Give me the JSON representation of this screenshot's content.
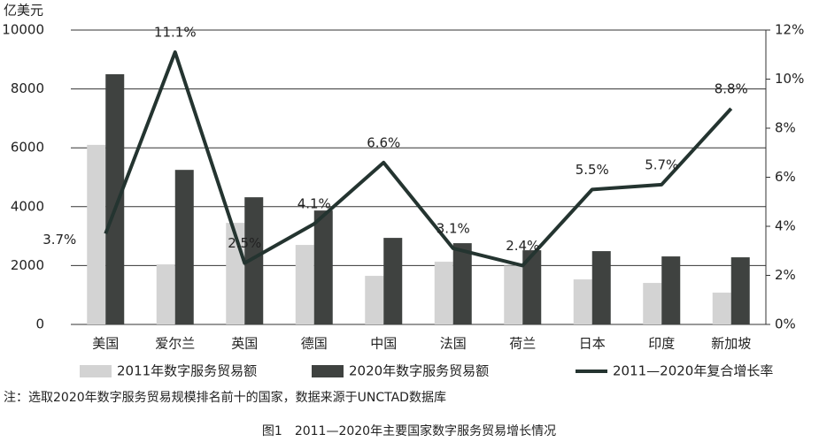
{
  "chart_data": {
    "type": "bar-line",
    "y_axis_label": "亿美元",
    "categories": [
      "美国",
      "爱尔兰",
      "英国",
      "德国",
      "中国",
      "法国",
      "荷兰",
      "日本",
      "印度",
      "新加坡"
    ],
    "series": [
      {
        "name": "2011年数字服务贸易额",
        "color": "#d3d3d3",
        "type": "bar",
        "values": [
          6100,
          2040,
          3450,
          2700,
          1650,
          2130,
          2000,
          1530,
          1410,
          1080
        ]
      },
      {
        "name": "2020年数字服务贸易额",
        "color": "#3f4240",
        "type": "bar",
        "values": [
          8500,
          5250,
          4320,
          3870,
          2940,
          2760,
          2520,
          2490,
          2310,
          2280
        ]
      },
      {
        "name": "2011—2020年复合增长率",
        "color": "#243430",
        "type": "line",
        "axis": "y2",
        "values": [
          3.7,
          11.1,
          2.5,
          4.1,
          6.6,
          3.1,
          2.4,
          5.5,
          5.7,
          8.8
        ],
        "value_labels": [
          "3.7%",
          "11.1%",
          "2.5%",
          "4.1%",
          "6.6%",
          "3.1%",
          "2.4%",
          "5.5%",
          "5.7%",
          "8.8%"
        ]
      }
    ],
    "ylim": [
      0,
      10000
    ],
    "yticks": [
      0,
      2000,
      4000,
      6000,
      8000,
      10000
    ],
    "y2lim": [
      0,
      12
    ],
    "y2ticks": [
      {
        "value": 0,
        "label": "0%"
      },
      {
        "value": 2,
        "label": "2%"
      },
      {
        "value": 4,
        "label": "4%"
      },
      {
        "value": 6,
        "label": "6%"
      },
      {
        "value": 8,
        "label": "8%"
      },
      {
        "value": 10,
        "label": "10%"
      },
      {
        "value": 12,
        "label": "12%"
      }
    ],
    "grid": true,
    "note": "注：选取2020年数字服务贸易规模排名前十的国家，数据来源于UNCTAD数据库",
    "caption": "图1　2011—2020年主要国家数字服务贸易增长情况"
  }
}
